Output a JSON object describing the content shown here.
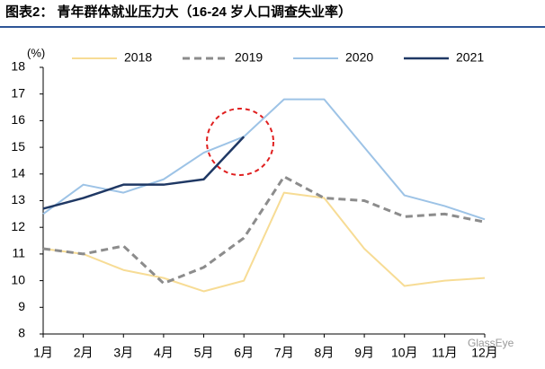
{
  "chart_data": {
    "type": "line",
    "title": "图表2：  青年群体就业压力大（16-24 岁人口调查失业率）",
    "y_label": "(%)",
    "watermark": "GlassEye",
    "categories": [
      "1月",
      "2月",
      "3月",
      "4月",
      "5月",
      "6月",
      "7月",
      "8月",
      "9月",
      "10月",
      "11月",
      "12月"
    ],
    "series": [
      {
        "name": "2018",
        "color": "#f7dc95",
        "width": 2,
        "dashed": false,
        "values": [
          11.2,
          11.0,
          10.4,
          10.1,
          9.6,
          10.0,
          13.3,
          13.1,
          11.2,
          9.8,
          10.0,
          10.1
        ]
      },
      {
        "name": "2019",
        "color": "#8c8c8c",
        "width": 3,
        "dashed": true,
        "values": [
          11.2,
          11.0,
          11.3,
          9.9,
          10.5,
          11.6,
          13.9,
          13.1,
          13.0,
          12.4,
          12.5,
          12.2
        ]
      },
      {
        "name": "2020",
        "color": "#9dc3e6",
        "width": 2,
        "dashed": false,
        "values": [
          12.5,
          13.6,
          13.3,
          13.8,
          14.8,
          15.4,
          16.8,
          16.8,
          15.0,
          13.2,
          12.8,
          12.3
        ]
      },
      {
        "name": "2021",
        "color": "#1f3864",
        "width": 2.5,
        "dashed": false,
        "values": [
          12.7,
          13.1,
          13.6,
          13.6,
          13.8,
          15.4,
          null,
          null,
          null,
          null,
          null,
          null
        ]
      }
    ],
    "ylim": [
      8,
      18
    ],
    "yticks": [
      8,
      9,
      10,
      11,
      12,
      13,
      14,
      15,
      16,
      17,
      18
    ],
    "legend": "top",
    "grid": false
  }
}
